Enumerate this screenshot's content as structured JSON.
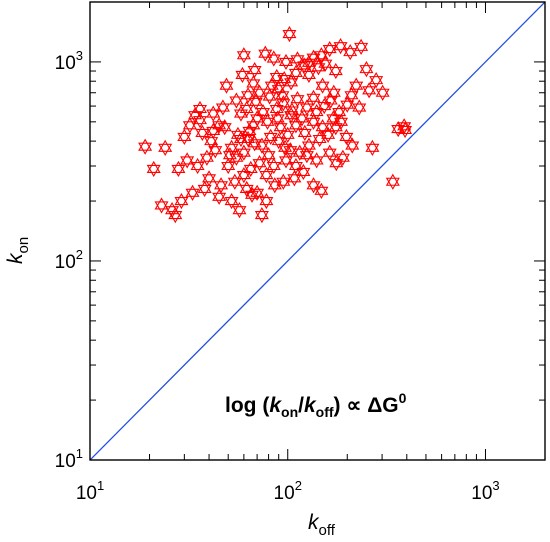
{
  "chart_data": {
    "type": "scatter",
    "scale": {
      "x": "log",
      "y": "log"
    },
    "xlabel": {
      "main": "k",
      "sub": "off"
    },
    "ylabel": {
      "main": "k",
      "sub": "on"
    },
    "xlim": [
      10,
      2000
    ],
    "ylim": [
      10,
      2000
    ],
    "x_ticks": [
      {
        "value": 10,
        "base": "10",
        "exp": "1"
      },
      {
        "value": 100,
        "base": "10",
        "exp": "2"
      },
      {
        "value": 1000,
        "base": "10",
        "exp": "3"
      }
    ],
    "y_ticks": [
      {
        "value": 10,
        "base": "10",
        "exp": "1"
      },
      {
        "value": 100,
        "base": "10",
        "exp": "2"
      },
      {
        "value": 1000,
        "base": "10",
        "exp": "3"
      }
    ],
    "grid": false,
    "marker": "star-of-david",
    "colors": {
      "points": "#ff0000",
      "line": "#1f4fe0",
      "axes": "#000000"
    },
    "reference_line": {
      "x": [
        10,
        2000
      ],
      "y": [
        10,
        2000
      ]
    },
    "annotation": {
      "prefix": "log (",
      "k1": "k",
      "k1_sub": "on",
      "slash": "/",
      "k2": "k",
      "k2_sub": "off",
      "suffix": ") ∝ ΔG",
      "suffix_sup": "0"
    },
    "points": [
      [
        102,
        1380
      ],
      [
        148,
        1080
      ],
      [
        112,
        1030
      ],
      [
        98,
        1000
      ],
      [
        185,
        1200
      ],
      [
        163,
        1160
      ],
      [
        207,
        1120
      ],
      [
        235,
        1190
      ],
      [
        135,
        1050
      ],
      [
        128,
        990
      ],
      [
        155,
        980
      ],
      [
        175,
        900
      ],
      [
        77,
        1100
      ],
      [
        60,
        1080
      ],
      [
        85,
        1040
      ],
      [
        121,
        960
      ],
      [
        143,
        940
      ],
      [
        250,
        920
      ],
      [
        280,
        810
      ],
      [
        302,
        700
      ],
      [
        67,
        780
      ],
      [
        90,
        730
      ],
      [
        72,
        700
      ],
      [
        81,
        670
      ],
      [
        112,
        650
      ],
      [
        135,
        660
      ],
      [
        165,
        640
      ],
      [
        200,
        610
      ],
      [
        230,
        590
      ],
      [
        182,
        560
      ],
      [
        153,
        600
      ],
      [
        125,
        590
      ],
      [
        105,
        570
      ],
      [
        95,
        620
      ],
      [
        88,
        580
      ],
      [
        75,
        560
      ],
      [
        62,
        580
      ],
      [
        58,
        550
      ],
      [
        70,
        520
      ],
      [
        79,
        500
      ],
      [
        92,
        470
      ],
      [
        110,
        480
      ],
      [
        118,
        520
      ],
      [
        135,
        500
      ],
      [
        160,
        430
      ],
      [
        175,
        470
      ],
      [
        198,
        420
      ],
      [
        212,
        380
      ],
      [
        163,
        350
      ],
      [
        140,
        320
      ],
      [
        125,
        340
      ],
      [
        110,
        300
      ],
      [
        98,
        320
      ],
      [
        85,
        300
      ],
      [
        72,
        310
      ],
      [
        65,
        290
      ],
      [
        55,
        330
      ],
      [
        50,
        300
      ],
      [
        43,
        360
      ],
      [
        39,
        330
      ],
      [
        35,
        300
      ],
      [
        31,
        320
      ],
      [
        28,
        290
      ],
      [
        40,
        260
      ],
      [
        46,
        240
      ],
      [
        54,
        250
      ],
      [
        62,
        230
      ],
      [
        70,
        220
      ],
      [
        78,
        200
      ],
      [
        60,
        270
      ],
      [
        52,
        200
      ],
      [
        45,
        210
      ],
      [
        38,
        230
      ],
      [
        33,
        220
      ],
      [
        29,
        200
      ],
      [
        26,
        180
      ],
      [
        23,
        190
      ],
      [
        27,
        170
      ],
      [
        19,
        375
      ],
      [
        21,
        290
      ],
      [
        24,
        370
      ],
      [
        32,
        480
      ],
      [
        36,
        510
      ],
      [
        42,
        450
      ],
      [
        48,
        470
      ],
      [
        56,
        430
      ],
      [
        63,
        410
      ],
      [
        68,
        390
      ],
      [
        74,
        380
      ],
      [
        82,
        420
      ],
      [
        90,
        400
      ],
      [
        97,
        370
      ],
      [
        103,
        360
      ],
      [
        115,
        350
      ],
      [
        128,
        380
      ],
      [
        145,
        410
      ],
      [
        190,
        330
      ],
      [
        176,
        310
      ],
      [
        120,
        280
      ],
      [
        108,
        260
      ],
      [
        95,
        250
      ],
      [
        86,
        240
      ],
      [
        78,
        270
      ],
      [
        66,
        215
      ],
      [
        57,
        180
      ],
      [
        74,
        170
      ],
      [
        135,
        240
      ],
      [
        148,
        225
      ],
      [
        268,
        370
      ],
      [
        340,
        250
      ],
      [
        362,
        460
      ],
      [
        388,
        475
      ],
      [
        392,
        455
      ],
      [
        110,
        880
      ],
      [
        128,
        860
      ],
      [
        104,
        790
      ],
      [
        88,
        840
      ],
      [
        68,
        910
      ],
      [
        59,
        860
      ],
      [
        49,
        760
      ],
      [
        63,
        680
      ],
      [
        55,
        640
      ],
      [
        47,
        590
      ],
      [
        42,
        550
      ],
      [
        36,
        580
      ],
      [
        34,
        540
      ],
      [
        30,
        420
      ],
      [
        41,
        400
      ],
      [
        52,
        370
      ],
      [
        60,
        350
      ],
      [
        64,
        450
      ],
      [
        83,
        760
      ],
      [
        96,
        820
      ],
      [
        150,
        760
      ],
      [
        171,
        700
      ],
      [
        210,
        680
      ],
      [
        222,
        760
      ],
      [
        258,
        720
      ],
      [
        45,
        480
      ],
      [
        69,
        630
      ],
      [
        94,
        680
      ],
      [
        140,
        560
      ],
      [
        170,
        520
      ],
      [
        186,
        500
      ],
      [
        37,
        440
      ],
      [
        80,
        340
      ],
      [
        100,
        430
      ],
      [
        122,
        440
      ],
      [
        150,
        470
      ],
      [
        67,
        480
      ],
      [
        58,
        410
      ],
      [
        51,
        340
      ],
      [
        89,
        520
      ],
      [
        104,
        540
      ]
    ]
  }
}
